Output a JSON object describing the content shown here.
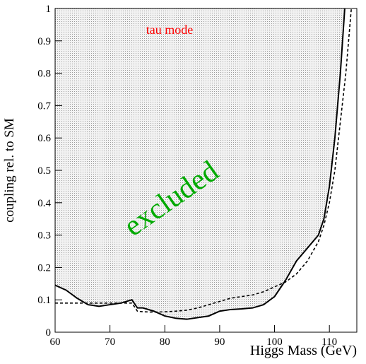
{
  "chart_data": {
    "type": "line",
    "annotations": [
      {
        "text": "tau mode",
        "color": "#ff0000"
      },
      {
        "text": "excluded",
        "color": "#00aa00"
      }
    ],
    "xlabel": "Higgs Mass (GeV)",
    "ylabel": "coupling rel. to SM",
    "x": [
      60,
      62,
      64,
      66,
      68,
      70,
      72,
      74,
      75,
      76,
      78,
      80,
      82,
      84,
      86,
      88,
      90,
      92,
      94,
      96,
      98,
      100,
      102,
      104,
      106,
      108,
      109,
      110,
      111,
      112,
      112.8,
      113,
      114
    ],
    "series": [
      {
        "color": "#000000",
        "dash": false,
        "shade": true,
        "values": [
          0.145,
          0.13,
          0.105,
          0.085,
          0.08,
          0.085,
          0.09,
          0.1,
          0.075,
          0.075,
          0.065,
          0.05,
          0.043,
          0.04,
          0.045,
          0.05,
          0.065,
          0.07,
          0.072,
          0.075,
          0.085,
          0.11,
          0.16,
          0.22,
          0.26,
          0.3,
          0.35,
          0.45,
          0.6,
          0.8,
          1,
          null,
          null
        ]
      },
      {
        "color": "#000000",
        "dash": true,
        "shade": false,
        "values": [
          0.09,
          0.09,
          0.09,
          0.09,
          0.09,
          0.09,
          0.09,
          0.09,
          0.065,
          0.063,
          0.062,
          0.063,
          0.065,
          0.068,
          0.075,
          0.085,
          0.095,
          0.105,
          0.11,
          0.115,
          0.125,
          0.14,
          0.155,
          0.18,
          0.22,
          0.28,
          0.33,
          0.4,
          0.5,
          0.65,
          0.77,
          0.8,
          1.0
        ]
      }
    ],
    "xlim": [
      60,
      115
    ],
    "ylim": [
      0,
      1
    ],
    "xticks": [
      60,
      70,
      80,
      90,
      100,
      110
    ],
    "yticks": [
      0,
      0.1,
      0.2,
      0.3,
      0.4,
      0.5,
      0.6,
      0.7,
      0.8,
      0.9,
      1
    ]
  }
}
